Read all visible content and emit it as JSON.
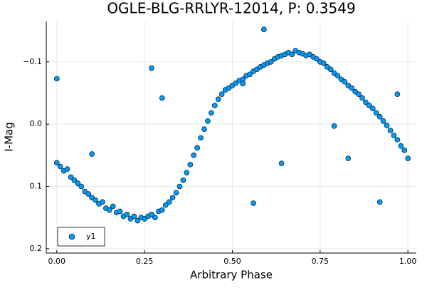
{
  "chart_data": {
    "type": "scatter",
    "title": "OGLE-BLG-RRLYR-12014, P: 0.3549",
    "x_label": "Arbitrary Phase",
    "y_label": "I-Mag",
    "xlim": [
      -0.03,
      1.024
    ],
    "ylim": [
      -0.165,
      0.207
    ],
    "y_inverted": true,
    "xticks": [
      {
        "value": 0,
        "label": "0.00"
      },
      {
        "value": 0.25,
        "label": "0.25"
      },
      {
        "value": 0.5,
        "label": "0.50"
      },
      {
        "value": 0.75,
        "label": "0.75"
      },
      {
        "value": 1,
        "label": "1.00"
      }
    ],
    "yticks": [
      {
        "value": -0.1,
        "label": "−0.1"
      },
      {
        "value": 0,
        "label": "0.0"
      },
      0.1,
      0.2
    ],
    "grid": true,
    "legend": "bottom-left",
    "series": [
      {
        "name": "y1",
        "color": "#009af9",
        "x": [
          0.0,
          0.01,
          0.02,
          0.03,
          0.04,
          0.05,
          0.06,
          0.07,
          0.08,
          0.09,
          0.1,
          0.11,
          0.12,
          0.13,
          0.14,
          0.15,
          0.16,
          0.17,
          0.18,
          0.19,
          0.2,
          0.21,
          0.22,
          0.23,
          0.24,
          0.25,
          0.26,
          0.27,
          0.28,
          0.29,
          0.3,
          0.31,
          0.32,
          0.33,
          0.34,
          0.35,
          0.36,
          0.37,
          0.38,
          0.39,
          0.4,
          0.41,
          0.42,
          0.43,
          0.44,
          0.45,
          0.46,
          0.47,
          0.48,
          0.49,
          0.5,
          0.51,
          0.52,
          0.53,
          0.54,
          0.55,
          0.56,
          0.57,
          0.58,
          0.59,
          0.6,
          0.61,
          0.62,
          0.63,
          0.64,
          0.65,
          0.66,
          0.67,
          0.68,
          0.69,
          0.7,
          0.71,
          0.72,
          0.73,
          0.74,
          0.75,
          0.76,
          0.77,
          0.78,
          0.79,
          0.8,
          0.81,
          0.82,
          0.83,
          0.84,
          0.85,
          0.86,
          0.87,
          0.88,
          0.89,
          0.9,
          0.91,
          0.92,
          0.93,
          0.94,
          0.95,
          0.96,
          0.97,
          0.98,
          0.99,
          1.0,
          0.0,
          0.27,
          0.59,
          0.64,
          0.56,
          0.83,
          0.97,
          0.92,
          0.1,
          0.3,
          0.53,
          0.79
        ],
        "values": [
          0.062,
          0.068,
          0.075,
          0.072,
          0.085,
          0.09,
          0.095,
          0.1,
          0.108,
          0.112,
          0.118,
          0.122,
          0.128,
          0.125,
          0.135,
          0.138,
          0.132,
          0.142,
          0.14,
          0.148,
          0.145,
          0.152,
          0.148,
          0.155,
          0.15,
          0.152,
          0.148,
          0.145,
          0.15,
          0.14,
          0.138,
          0.13,
          0.125,
          0.118,
          0.11,
          0.1,
          0.09,
          0.078,
          0.065,
          0.05,
          0.038,
          0.022,
          0.008,
          -0.005,
          -0.018,
          -0.03,
          -0.04,
          -0.048,
          -0.055,
          -0.058,
          -0.062,
          -0.066,
          -0.07,
          -0.072,
          -0.078,
          -0.08,
          -0.085,
          -0.088,
          -0.092,
          -0.095,
          -0.098,
          -0.1,
          -0.105,
          -0.108,
          -0.11,
          -0.112,
          -0.115,
          -0.112,
          -0.118,
          -0.115,
          -0.113,
          -0.11,
          -0.112,
          -0.108,
          -0.105,
          -0.1,
          -0.098,
          -0.092,
          -0.088,
          -0.082,
          -0.078,
          -0.072,
          -0.068,
          -0.062,
          -0.058,
          -0.052,
          -0.048,
          -0.042,
          -0.035,
          -0.03,
          -0.025,
          -0.018,
          -0.012,
          -0.005,
          0.002,
          0.01,
          0.018,
          0.025,
          0.035,
          0.042,
          0.055,
          -0.073,
          -0.09,
          -0.152,
          0.063,
          0.127,
          0.055,
          -0.048,
          0.125,
          0.048,
          -0.042,
          -0.065,
          0.003
        ]
      }
    ]
  }
}
